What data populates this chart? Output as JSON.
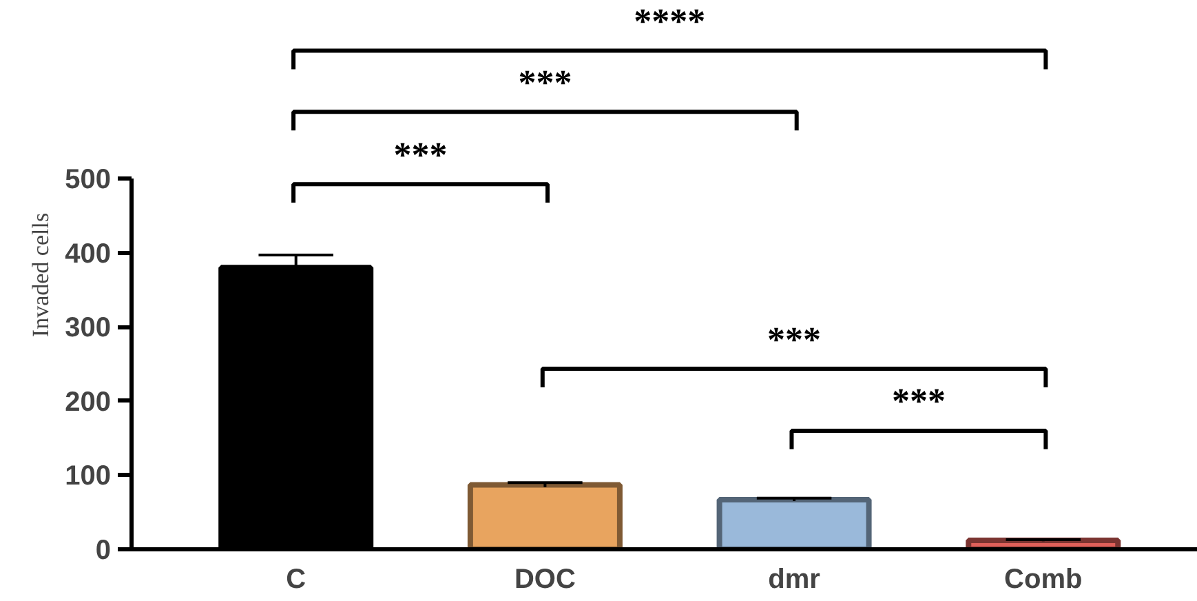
{
  "chart_data": {
    "type": "bar",
    "ylabel": "Invaded cells",
    "categories": [
      "C",
      "DOC",
      "dmr",
      "Comb"
    ],
    "values": [
      380,
      87,
      67,
      12
    ],
    "colors": [
      "#000000",
      "#e8a45f",
      "#9ab9da",
      "#e0605a"
    ],
    "errors": [
      17,
      3,
      2,
      1
    ],
    "ylim": [
      0,
      500
    ],
    "yticks": [
      0,
      100,
      200,
      300,
      400,
      500
    ],
    "grid": false,
    "annotations": [
      "****",
      "***",
      "***",
      "***",
      "***"
    ]
  }
}
